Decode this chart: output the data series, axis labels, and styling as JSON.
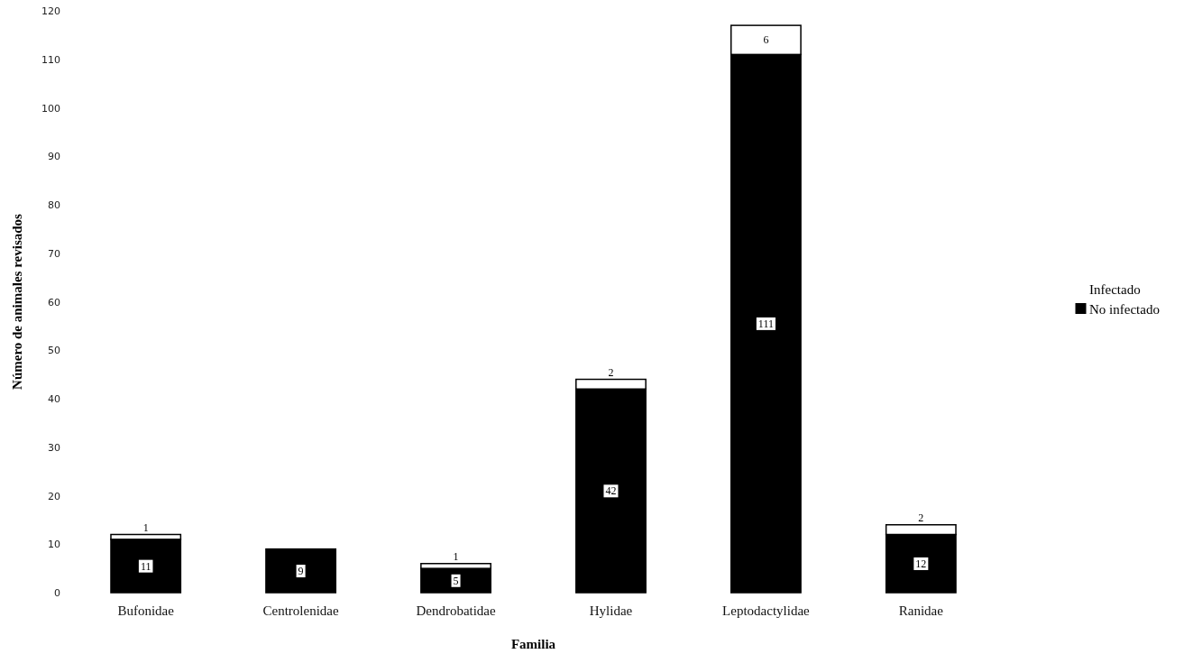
{
  "chart_data": {
    "type": "bar",
    "stacked": true,
    "xlabel": "Familia",
    "ylabel": "Número de animales revisados",
    "categories": [
      "Bufonidae",
      "Centrolenidae",
      "Dendrobatidae",
      "Hylidae",
      "Leptodactylidae",
      "Ranidae"
    ],
    "series": [
      {
        "name": "No infectado",
        "color": "#000000",
        "values": [
          11,
          9,
          5,
          42,
          111,
          12
        ]
      },
      {
        "name": "Infectado",
        "color": "#ffffff",
        "values": [
          1,
          null,
          1,
          2,
          6,
          2
        ]
      }
    ],
    "ylim": [
      0,
      120
    ],
    "yticks": [
      0,
      10,
      20,
      30,
      40,
      50,
      60,
      70,
      80,
      90,
      100,
      110,
      120
    ],
    "data_labels": true,
    "legend": "right",
    "grid": false
  }
}
